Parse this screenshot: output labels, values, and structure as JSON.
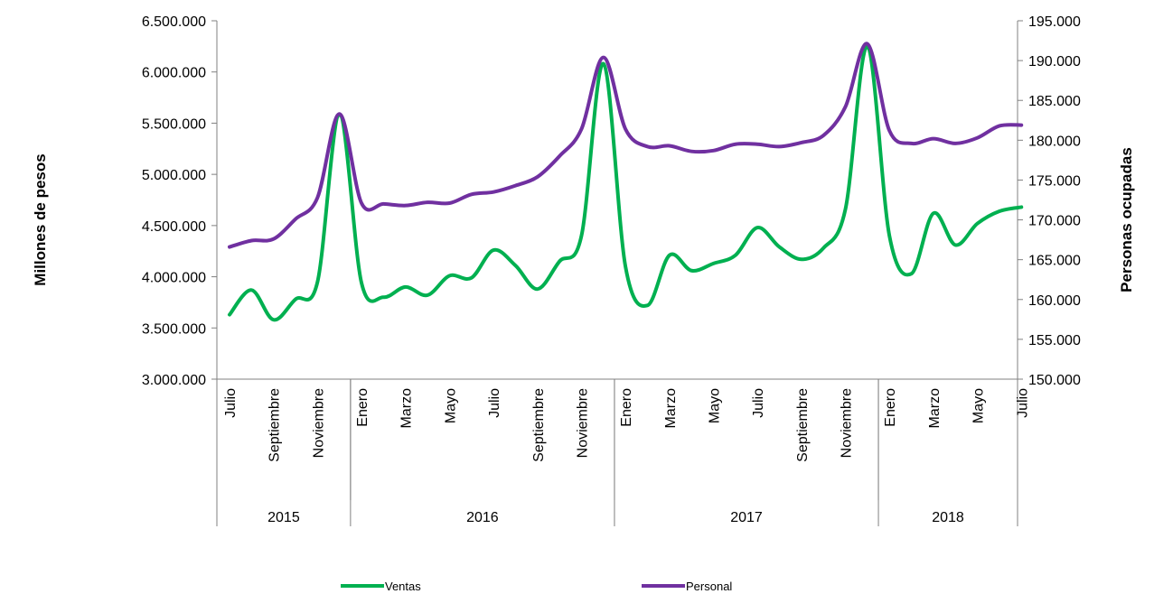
{
  "chart_data": {
    "type": "line",
    "title": "",
    "ylabel_left": "Millones de pesos",
    "ylabel_right": "Personas ocupadas",
    "ylim_left": [
      3000000,
      6500000
    ],
    "ylim_right": [
      150000,
      195000
    ],
    "yticks_left": [
      "3.000.000",
      "3.500.000",
      "4.000.000",
      "4.500.000",
      "5.000.000",
      "5.500.000",
      "6.000.000",
      "6.500.000"
    ],
    "yticks_right": [
      "150.000",
      "155.000",
      "160.000",
      "165.000",
      "170.000",
      "175.000",
      "180.000",
      "185.000",
      "190.000",
      "195.000"
    ],
    "x": [
      "2015-07",
      "2015-08",
      "2015-09",
      "2015-10",
      "2015-11",
      "2015-12",
      "2016-01",
      "2016-02",
      "2016-03",
      "2016-04",
      "2016-05",
      "2016-06",
      "2016-07",
      "2016-08",
      "2016-09",
      "2016-10",
      "2016-11",
      "2016-12",
      "2017-01",
      "2017-02",
      "2017-03",
      "2017-04",
      "2017-05",
      "2017-06",
      "2017-07",
      "2017-08",
      "2017-09",
      "2017-10",
      "2017-11",
      "2017-12",
      "2018-01",
      "2018-02",
      "2018-03",
      "2018-04",
      "2018-05",
      "2018-06",
      "2018-07"
    ],
    "month_labels": [
      "Julio",
      "Septiembre",
      "Noviembre",
      "Enero",
      "Marzo",
      "Mayo",
      "Julio",
      "Septiembre",
      "Noviembre",
      "Enero",
      "Marzo",
      "Mayo",
      "Julio",
      "Septiembre",
      "Noviembre",
      "Enero",
      "Marzo",
      "Mayo",
      "Julio"
    ],
    "month_label_index": [
      0,
      2,
      4,
      6,
      8,
      10,
      12,
      14,
      16,
      18,
      20,
      22,
      24,
      26,
      28,
      30,
      32,
      34,
      36
    ],
    "years": [
      {
        "label": "2015",
        "start": 0,
        "end": 5
      },
      {
        "label": "2016",
        "start": 6,
        "end": 17
      },
      {
        "label": "2017",
        "start": 18,
        "end": 29
      },
      {
        "label": "2018",
        "start": 30,
        "end": 36
      }
    ],
    "series": [
      {
        "name": "Ventas",
        "axis": "left",
        "color": "#00b050",
        "values": [
          3630000,
          3870000,
          3580000,
          3780000,
          3950000,
          5580000,
          3940000,
          3800000,
          3900000,
          3820000,
          4010000,
          3990000,
          4260000,
          4110000,
          3880000,
          4150000,
          4400000,
          6080000,
          4100000,
          3720000,
          4210000,
          4060000,
          4130000,
          4210000,
          4480000,
          4290000,
          4170000,
          4280000,
          4660000,
          6250000,
          4400000,
          4030000,
          4620000,
          4310000,
          4520000,
          4640000,
          4680000
        ]
      },
      {
        "name": "Personal",
        "axis": "right",
        "color": "#7030a0",
        "values": [
          166600,
          167400,
          167600,
          170100,
          172800,
          183300,
          172100,
          172000,
          171800,
          172200,
          172100,
          173200,
          173500,
          174300,
          175400,
          178000,
          181400,
          190400,
          181400,
          179200,
          179300,
          178600,
          178700,
          179500,
          179500,
          179200,
          179700,
          180600,
          184200,
          192100,
          181200,
          179600,
          180200,
          179600,
          180300,
          181800,
          181900
        ]
      }
    ],
    "legend": {
      "position": "bottom",
      "entries": [
        "Ventas",
        "Personal"
      ]
    }
  }
}
